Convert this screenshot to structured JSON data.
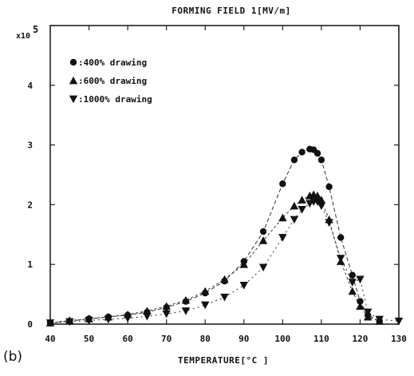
{
  "chart_data": {
    "type": "line",
    "title": "FORMING FIELD 1[MV/m]",
    "xlabel": "TEMPERATURE[°C ]",
    "ylabel": "",
    "y_multiplier_base": "x10",
    "y_multiplier_exp": "5",
    "panel_label": "(b)",
    "xlim": [
      40,
      130
    ],
    "ylim": [
      0,
      5
    ],
    "xticks": [
      40,
      50,
      60,
      70,
      80,
      90,
      100,
      110,
      120,
      130
    ],
    "yticks": [
      0,
      1,
      2,
      3,
      4,
      5
    ],
    "grid": false,
    "legend_position": "top-left",
    "series": [
      {
        "name": ":400% drawing",
        "marker": "circle",
        "x": [
          40,
          45,
          50,
          55,
          60,
          65,
          70,
          75,
          80,
          85,
          90,
          95,
          100,
          103,
          105,
          107,
          108,
          109,
          110,
          112,
          115,
          118,
          120,
          122,
          125
        ],
        "y": [
          0.02,
          0.05,
          0.09,
          0.12,
          0.15,
          0.2,
          0.28,
          0.38,
          0.52,
          0.72,
          1.05,
          1.55,
          2.35,
          2.75,
          2.88,
          2.93,
          2.92,
          2.86,
          2.75,
          2.3,
          1.45,
          0.82,
          0.38,
          0.15,
          0.05
        ]
      },
      {
        "name": ":600% drawing",
        "marker": "triangle-up",
        "x": [
          40,
          45,
          50,
          55,
          60,
          65,
          70,
          75,
          80,
          85,
          90,
          95,
          100,
          103,
          105,
          107,
          108,
          109,
          110,
          112,
          115,
          118,
          120,
          122,
          125
        ],
        "y": [
          0.02,
          0.06,
          0.09,
          0.12,
          0.16,
          0.22,
          0.3,
          0.4,
          0.55,
          0.75,
          1.0,
          1.4,
          1.78,
          1.98,
          2.08,
          2.15,
          2.17,
          2.15,
          2.08,
          1.75,
          1.05,
          0.55,
          0.3,
          0.12,
          0.05
        ]
      },
      {
        "name": ":1000% drawing",
        "marker": "triangle-down",
        "x": [
          40,
          45,
          50,
          55,
          60,
          65,
          70,
          75,
          80,
          85,
          90,
          95,
          100,
          103,
          105,
          107,
          108,
          109,
          110,
          112,
          115,
          118,
          120,
          122,
          125,
          130
        ],
        "y": [
          0.02,
          0.04,
          0.06,
          0.08,
          0.1,
          0.13,
          0.17,
          0.22,
          0.32,
          0.45,
          0.65,
          0.95,
          1.45,
          1.75,
          1.92,
          2.02,
          2.05,
          2.05,
          1.98,
          1.7,
          1.1,
          0.7,
          0.75,
          0.2,
          0.08,
          0.05
        ]
      }
    ]
  }
}
